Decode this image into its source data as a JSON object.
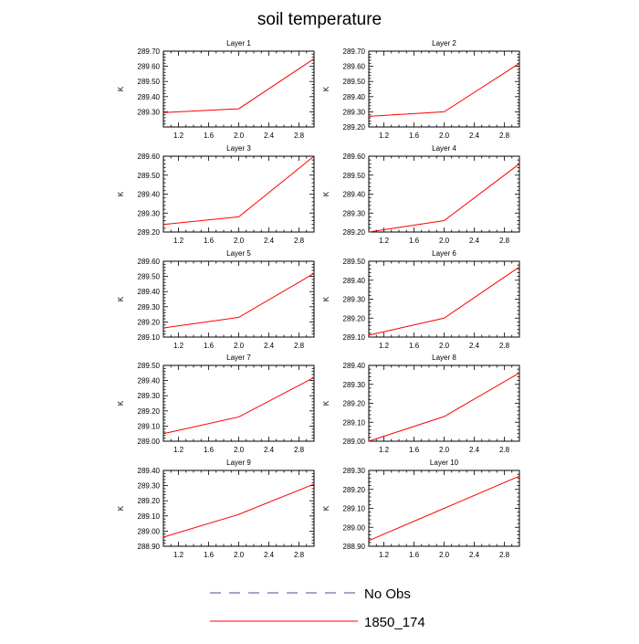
{
  "page_title": "soil temperature",
  "legend": [
    {
      "label": "No Obs",
      "color": "#4b4b8f",
      "style": "dashed"
    },
    {
      "label": "1850_174",
      "color": "#ff0000",
      "style": "solid"
    }
  ],
  "chart_data": [
    {
      "type": "line",
      "title": "Layer 1",
      "ylabel": "K",
      "xlim": [
        1,
        3
      ],
      "ylim": [
        289.2,
        289.7
      ],
      "xticks": [
        1.2,
        1.6,
        2.0,
        2.4,
        2.8
      ],
      "xtick_labels": [
        "1.2",
        "1.6",
        "2.0",
        "2.4",
        "2.8"
      ],
      "yticks": [
        289.3,
        289.4,
        289.5,
        289.6,
        289.7
      ],
      "ytick_labels": [
        "289.30",
        "289.40",
        "289.50",
        "289.60",
        "289.70"
      ],
      "series": [
        {
          "name": "1850_174",
          "color": "#ff0000",
          "x": [
            1,
            2,
            3
          ],
          "y": [
            289.295,
            289.32,
            289.65
          ]
        }
      ]
    },
    {
      "type": "line",
      "title": "Layer 2",
      "ylabel": "K",
      "xlim": [
        1,
        3
      ],
      "ylim": [
        289.2,
        289.7
      ],
      "xticks": [
        1.2,
        1.6,
        2.0,
        2.4,
        2.8
      ],
      "xtick_labels": [
        "1.2",
        "1.6",
        "2.0",
        "2.4",
        "2.8"
      ],
      "yticks": [
        289.2,
        289.3,
        289.4,
        289.5,
        289.6,
        289.7
      ],
      "ytick_labels": [
        "289.20",
        "289.30",
        "289.40",
        "289.50",
        "289.60",
        "289.70"
      ],
      "series": [
        {
          "name": "1850_174",
          "color": "#ff0000",
          "x": [
            1,
            2,
            3
          ],
          "y": [
            289.27,
            289.3,
            289.62
          ]
        }
      ]
    },
    {
      "type": "line",
      "title": "Layer 3",
      "ylabel": "K",
      "xlim": [
        1,
        3
      ],
      "ylim": [
        289.2,
        289.6
      ],
      "xticks": [
        1.2,
        1.6,
        2.0,
        2.4,
        2.8
      ],
      "xtick_labels": [
        "1.2",
        "1.6",
        "2.0",
        "2.4",
        "2.8"
      ],
      "yticks": [
        289.2,
        289.3,
        289.4,
        289.5,
        289.6
      ],
      "ytick_labels": [
        "289.20",
        "289.30",
        "289.40",
        "289.50",
        "289.60"
      ],
      "series": [
        {
          "name": "1850_174",
          "color": "#ff0000",
          "x": [
            1,
            2,
            3
          ],
          "y": [
            289.24,
            289.28,
            289.6
          ]
        }
      ]
    },
    {
      "type": "line",
      "title": "Layer 4",
      "ylabel": "K",
      "xlim": [
        1,
        3
      ],
      "ylim": [
        289.2,
        289.6
      ],
      "xticks": [
        1.2,
        1.6,
        2.0,
        2.4,
        2.8
      ],
      "xtick_labels": [
        "1.2",
        "1.6",
        "2.0",
        "2.4",
        "2.8"
      ],
      "yticks": [
        289.2,
        289.3,
        289.4,
        289.5,
        289.6
      ],
      "ytick_labels": [
        "289.20",
        "289.30",
        "289.40",
        "289.50",
        "289.60"
      ],
      "series": [
        {
          "name": "1850_174",
          "color": "#ff0000",
          "x": [
            1,
            2,
            3
          ],
          "y": [
            289.2,
            289.26,
            289.56
          ]
        }
      ]
    },
    {
      "type": "line",
      "title": "Layer 5",
      "ylabel": "K",
      "xlim": [
        1,
        3
      ],
      "ylim": [
        289.1,
        289.6
      ],
      "xticks": [
        1.2,
        1.6,
        2.0,
        2.4,
        2.8
      ],
      "xtick_labels": [
        "1.2",
        "1.6",
        "2.0",
        "2.4",
        "2.8"
      ],
      "yticks": [
        289.1,
        289.2,
        289.3,
        289.4,
        289.5,
        289.6
      ],
      "ytick_labels": [
        "289.10",
        "289.20",
        "289.30",
        "289.40",
        "289.50",
        "289.60"
      ],
      "series": [
        {
          "name": "1850_174",
          "color": "#ff0000",
          "x": [
            1,
            2,
            3
          ],
          "y": [
            289.16,
            289.23,
            289.52
          ]
        }
      ]
    },
    {
      "type": "line",
      "title": "Layer 6",
      "ylabel": "K",
      "xlim": [
        1,
        3
      ],
      "ylim": [
        289.1,
        289.5
      ],
      "xticks": [
        1.2,
        1.6,
        2.0,
        2.4,
        2.8
      ],
      "xtick_labels": [
        "1.2",
        "1.6",
        "2.0",
        "2.4",
        "2.8"
      ],
      "yticks": [
        289.1,
        289.2,
        289.3,
        289.4,
        289.5
      ],
      "ytick_labels": [
        "289.10",
        "289.20",
        "289.30",
        "289.40",
        "289.50"
      ],
      "series": [
        {
          "name": "1850_174",
          "color": "#ff0000",
          "x": [
            1,
            2,
            3
          ],
          "y": [
            289.11,
            289.2,
            289.47
          ]
        }
      ]
    },
    {
      "type": "line",
      "title": "Layer 7",
      "ylabel": "K",
      "xlim": [
        1,
        3
      ],
      "ylim": [
        289.0,
        289.5
      ],
      "xticks": [
        1.2,
        1.6,
        2.0,
        2.4,
        2.8
      ],
      "xtick_labels": [
        "1.2",
        "1.6",
        "2.0",
        "2.4",
        "2.8"
      ],
      "yticks": [
        289.0,
        289.1,
        289.2,
        289.3,
        289.4,
        289.5
      ],
      "ytick_labels": [
        "289.00",
        "289.10",
        "289.20",
        "289.30",
        "289.40",
        "289.50"
      ],
      "series": [
        {
          "name": "1850_174",
          "color": "#ff0000",
          "x": [
            1,
            2,
            3
          ],
          "y": [
            289.05,
            289.16,
            289.42
          ]
        }
      ]
    },
    {
      "type": "line",
      "title": "Layer 8",
      "ylabel": "K",
      "xlim": [
        1,
        3
      ],
      "ylim": [
        289.0,
        289.4
      ],
      "xticks": [
        1.2,
        1.6,
        2.0,
        2.4,
        2.8
      ],
      "xtick_labels": [
        "1.2",
        "1.6",
        "2.0",
        "2.4",
        "2.8"
      ],
      "yticks": [
        289.0,
        289.1,
        289.2,
        289.3,
        289.4
      ],
      "ytick_labels": [
        "289.00",
        "289.10",
        "289.20",
        "289.30",
        "289.40"
      ],
      "series": [
        {
          "name": "1850_174",
          "color": "#ff0000",
          "x": [
            1,
            2,
            3
          ],
          "y": [
            289.0,
            289.13,
            289.36
          ]
        }
      ]
    },
    {
      "type": "line",
      "title": "Layer 9",
      "ylabel": "K",
      "xlim": [
        1,
        3
      ],
      "ylim": [
        288.9,
        289.4
      ],
      "xticks": [
        1.2,
        1.6,
        2.0,
        2.4,
        2.8
      ],
      "xtick_labels": [
        "1.2",
        "1.6",
        "2.0",
        "2.4",
        "2.8"
      ],
      "yticks": [
        288.9,
        289.0,
        289.1,
        289.2,
        289.3,
        289.4
      ],
      "ytick_labels": [
        "288.90",
        "289.00",
        "289.10",
        "289.20",
        "289.30",
        "289.40"
      ],
      "series": [
        {
          "name": "1850_174",
          "color": "#ff0000",
          "x": [
            1,
            2,
            3
          ],
          "y": [
            288.96,
            289.11,
            289.31
          ]
        }
      ]
    },
    {
      "type": "line",
      "title": "Layer 10",
      "ylabel": "K",
      "xlim": [
        1,
        3
      ],
      "ylim": [
        288.9,
        289.3
      ],
      "xticks": [
        1.2,
        1.6,
        2.0,
        2.4,
        2.8
      ],
      "xtick_labels": [
        "1.2",
        "1.6",
        "2.0",
        "2.4",
        "2.8"
      ],
      "yticks": [
        288.9,
        289.0,
        289.1,
        289.2,
        289.3
      ],
      "ytick_labels": [
        "288.90",
        "289.00",
        "289.10",
        "289.20",
        "289.30"
      ],
      "series": [
        {
          "name": "1850_174",
          "color": "#ff0000",
          "x": [
            1,
            2,
            3
          ],
          "y": [
            288.93,
            289.1,
            289.27
          ]
        }
      ]
    }
  ]
}
